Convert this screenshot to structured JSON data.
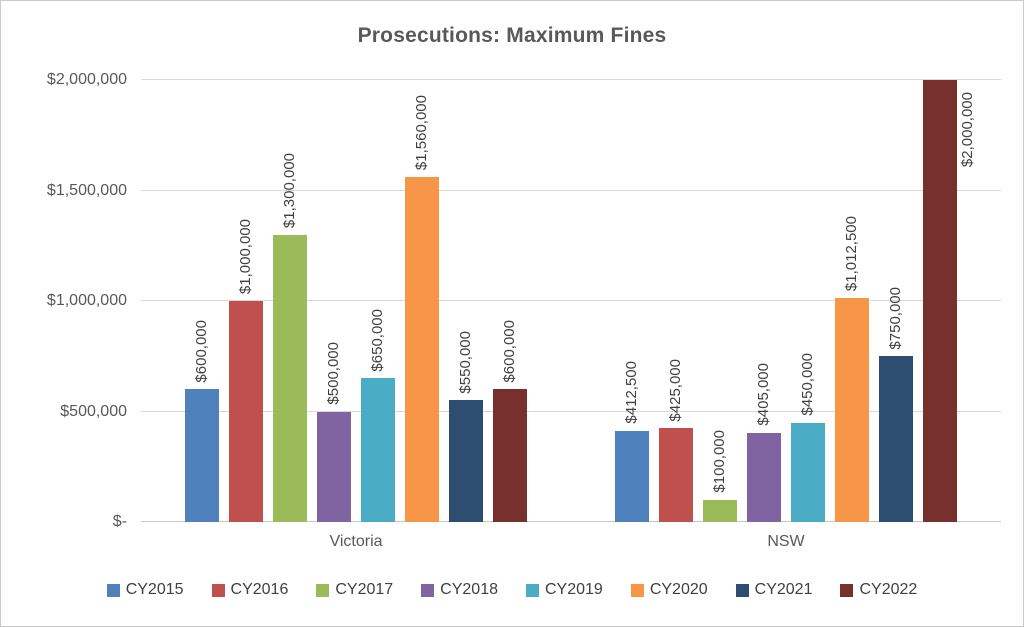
{
  "chart_data": {
    "type": "bar",
    "title": "Prosecutions: Maximum Fines",
    "categories": [
      "Victoria",
      "NSW"
    ],
    "series": [
      {
        "name": "CY2015",
        "color": "#4F81BD",
        "values": [
          600000,
          412500
        ],
        "labels": [
          "$600,000",
          "$412,500"
        ]
      },
      {
        "name": "CY2016",
        "color": "#C0504D",
        "values": [
          1000000,
          425000
        ],
        "labels": [
          "$1,000,000",
          "$425,000"
        ]
      },
      {
        "name": "CY2017",
        "color": "#9BBB59",
        "values": [
          1300000,
          100000
        ],
        "labels": [
          "$1,300,000",
          "$100,000"
        ]
      },
      {
        "name": "CY2018",
        "color": "#8064A2",
        "values": [
          500000,
          405000
        ],
        "labels": [
          "$500,000",
          "$405,000"
        ]
      },
      {
        "name": "CY2019",
        "color": "#4BACC6",
        "values": [
          650000,
          450000
        ],
        "labels": [
          "$650,000",
          "$450,000"
        ]
      },
      {
        "name": "CY2020",
        "color": "#F79646",
        "values": [
          1560000,
          1012500
        ],
        "labels": [
          "$1,560,000",
          "$1,012,500"
        ]
      },
      {
        "name": "CY2021",
        "color": "#2E4E71",
        "values": [
          550000,
          750000
        ],
        "labels": [
          "$550,000",
          "$750,000"
        ]
      },
      {
        "name": "CY2022",
        "color": "#77302C",
        "values": [
          600000,
          2000000
        ],
        "labels": [
          "$600,000",
          "$2,000,000"
        ]
      }
    ],
    "y_ticks": [
      "$-",
      "$500,000",
      "$1,000,000",
      "$1,500,000",
      "$2,000,000"
    ],
    "ylim": [
      0,
      2000000
    ],
    "xlabel": "",
    "ylabel": "",
    "grid": true,
    "legend_position": "bottom",
    "data_label_orientation": "vertical-bottom-to-top"
  }
}
